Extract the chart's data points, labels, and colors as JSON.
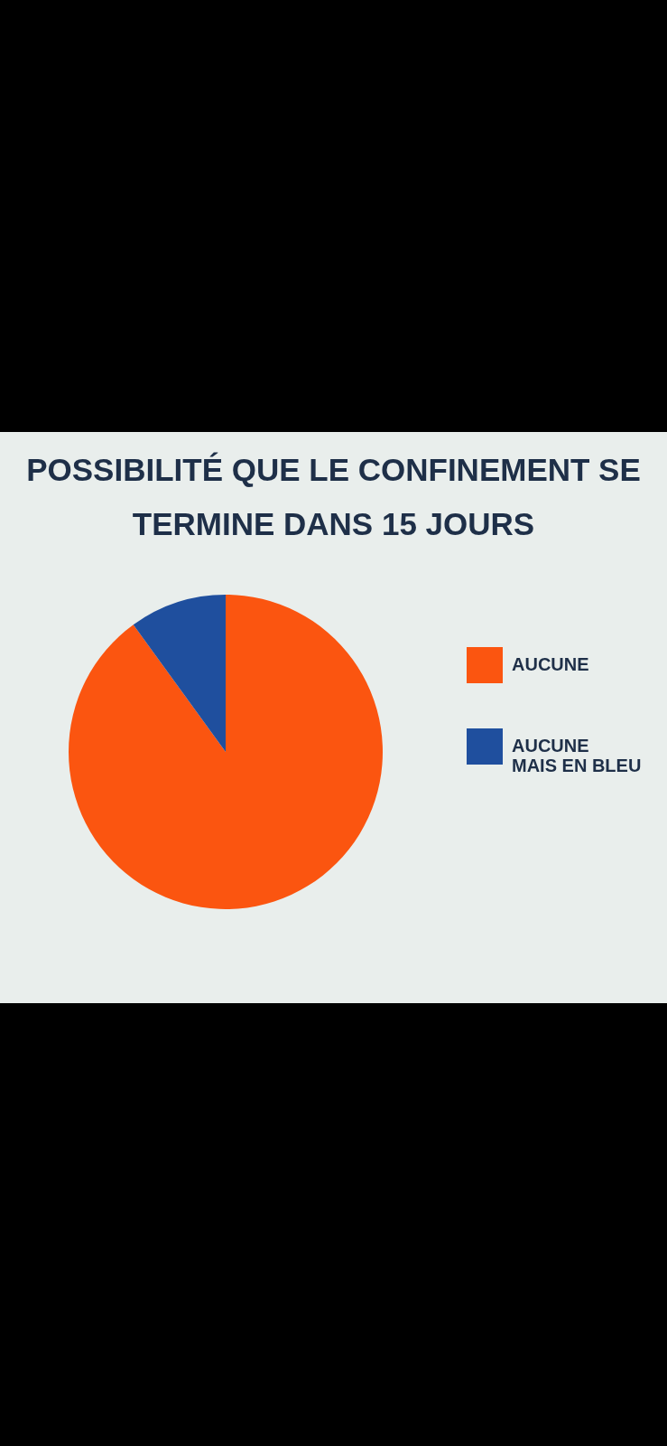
{
  "chart_data": {
    "type": "pie",
    "title": "POSSIBILITÉ QUE LE CONFINEMENT SE TERMINE DANS 15 JOURS",
    "categories": [
      "AUCUNE",
      "AUCUNE MAIS EN BLEU"
    ],
    "values": [
      90,
      10
    ],
    "colors": [
      "#fb5510",
      "#1f4f9e"
    ],
    "legend": "right"
  }
}
